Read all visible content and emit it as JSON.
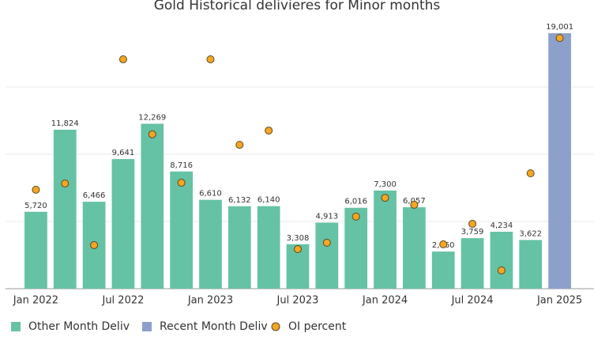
{
  "chart_data": {
    "type": "bar",
    "title": "Gold Historical delivieres for Minor months",
    "categories": [
      "Jan 2022",
      null,
      null,
      "Jul 2022",
      null,
      null,
      "Jan 2023",
      null,
      null,
      "Jul 2023",
      null,
      null,
      "Jan 2024",
      null,
      null,
      "Jul 2024",
      null,
      null,
      "Jan 2025"
    ],
    "series": [
      {
        "name": "Other Month Deliv",
        "color": "#66c2a5",
        "values": [
          5720,
          11824,
          6466,
          9641,
          12269,
          8716,
          6610,
          6132,
          6140,
          3308,
          4913,
          6016,
          7300,
          6057,
          2760,
          3759,
          4234,
          3622,
          null
        ],
        "value_labels": [
          "5,720",
          "11,824",
          "6,466",
          "9,641",
          "12,269",
          "8,716",
          "6,610",
          "6,132",
          "6,140",
          "3,308",
          "4,913",
          "6,016",
          "7,300",
          "6,057",
          "2,760",
          "3,759",
          "4,234",
          "3,622",
          null
        ]
      },
      {
        "name": "Recent Month Deliv",
        "color": "#8da0cb",
        "values": [
          null,
          null,
          null,
          null,
          null,
          null,
          null,
          null,
          null,
          null,
          null,
          null,
          null,
          null,
          null,
          null,
          null,
          null,
          19001
        ],
        "value_labels": [
          null,
          null,
          null,
          null,
          null,
          null,
          null,
          null,
          null,
          null,
          null,
          null,
          null,
          null,
          null,
          null,
          null,
          null,
          "19,001"
        ]
      },
      {
        "name": "OI percent",
        "color": "#f5a623",
        "axis": "y2",
        "marker": "circle",
        "values": [
          36.8,
          39.1,
          16.2,
          85.3,
          57.4,
          39.4,
          85.3,
          53.5,
          58.8,
          14.7,
          17.1,
          26.8,
          33.8,
          31.2,
          16.5,
          24.1,
          6.8,
          42.9,
          93.2
        ]
      }
    ],
    "ylim": [
      0,
      20000
    ],
    "yticks": [
      0,
      5000,
      10000,
      15000
    ],
    "show_ytick_labels": false,
    "y2lim": [
      0,
      100
    ],
    "grid": true,
    "legend": "bottom"
  }
}
